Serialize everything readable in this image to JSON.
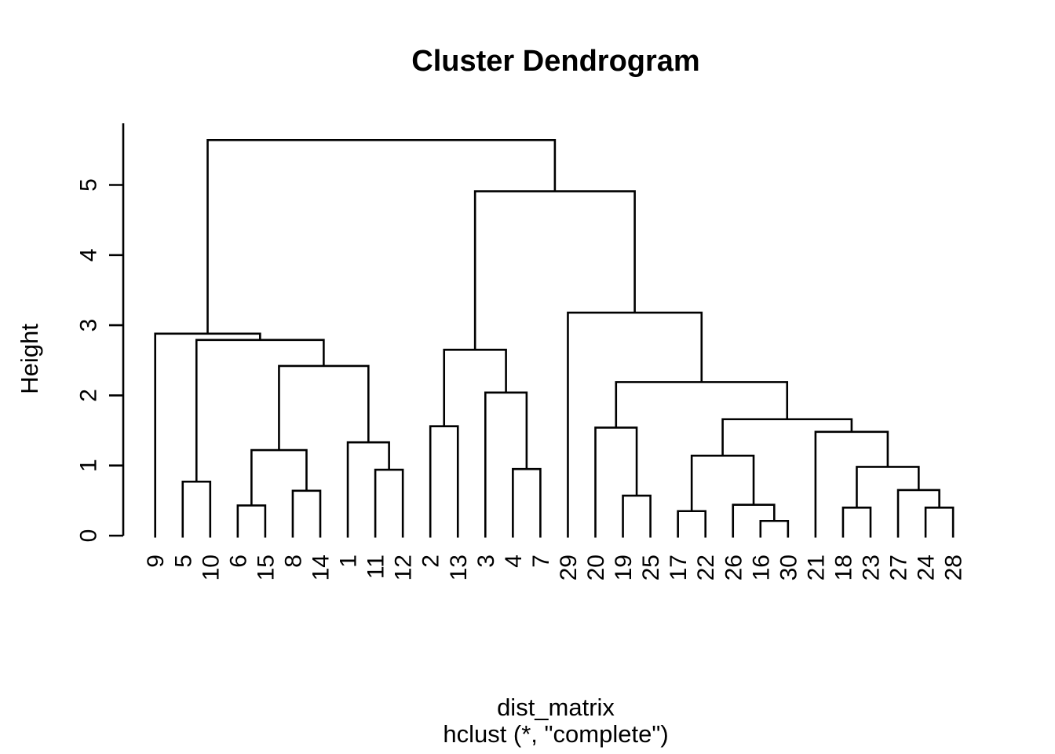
{
  "title": "Cluster Dendrogram",
  "y_axis": {
    "label": "Height",
    "ticks": [
      0,
      1,
      2,
      3,
      4,
      5
    ]
  },
  "x_axis": {
    "label": "dist_matrix",
    "sub_label": "hclust (*, \"complete\")"
  },
  "colors": {
    "line": "#000000",
    "text": "#000000",
    "background": "#ffffff"
  },
  "chart_data": {
    "type": "dendrogram",
    "title": "Cluster Dendrogram",
    "ylabel": "Height",
    "xlabel": "dist_matrix",
    "sub": "hclust (*, \"complete\")",
    "ylim": [
      0,
      5.64
    ],
    "y_ticks": [
      0,
      1,
      2,
      3,
      4,
      5
    ],
    "max_height": 5.64,
    "leaf_order": [
      "9",
      "5",
      "10",
      "6",
      "15",
      "8",
      "14",
      "1",
      "11",
      "12",
      "2",
      "13",
      "3",
      "4",
      "7",
      "29",
      "20",
      "19",
      "25",
      "17",
      "22",
      "26",
      "16",
      "30",
      "21",
      "18",
      "23",
      "27",
      "24",
      "28"
    ],
    "tree": {
      "h": 5.64,
      "c": [
        {
          "h": 2.88,
          "c": [
            "9",
            {
              "h": 2.79,
              "c": [
                {
                  "h": 0.77,
                  "c": [
                    "5",
                    "10"
                  ]
                },
                {
                  "h": 2.42,
                  "c": [
                    {
                      "h": 1.22,
                      "c": [
                        {
                          "h": 0.43,
                          "c": [
                            "6",
                            "15"
                          ]
                        },
                        {
                          "h": 0.64,
                          "c": [
                            "8",
                            "14"
                          ]
                        }
                      ]
                    },
                    {
                      "h": 1.33,
                      "c": [
                        "1",
                        {
                          "h": 0.94,
                          "c": [
                            "11",
                            "12"
                          ]
                        }
                      ]
                    }
                  ]
                }
              ]
            }
          ]
        },
        {
          "h": 4.91,
          "c": [
            {
              "h": 2.65,
              "c": [
                {
                  "h": 1.56,
                  "c": [
                    "2",
                    "13"
                  ]
                },
                {
                  "h": 2.04,
                  "c": [
                    "3",
                    {
                      "h": 0.95,
                      "c": [
                        "4",
                        "7"
                      ]
                    }
                  ]
                }
              ]
            },
            {
              "h": 3.18,
              "c": [
                "29",
                {
                  "h": 2.19,
                  "c": [
                    {
                      "h": 1.54,
                      "c": [
                        "20",
                        {
                          "h": 0.57,
                          "c": [
                            "19",
                            "25"
                          ]
                        }
                      ]
                    },
                    {
                      "h": 1.66,
                      "c": [
                        {
                          "h": 1.14,
                          "c": [
                            {
                              "h": 0.35,
                              "c": [
                                "17",
                                "22"
                              ]
                            },
                            {
                              "h": 0.44,
                              "c": [
                                "26",
                                {
                                  "h": 0.21,
                                  "c": [
                                    "16",
                                    "30"
                                  ]
                                }
                              ]
                            }
                          ]
                        },
                        {
                          "h": 1.48,
                          "c": [
                            "21",
                            {
                              "h": 0.98,
                              "c": [
                                {
                                  "h": 0.4,
                                  "c": [
                                    "18",
                                    "23"
                                  ]
                                },
                                {
                                  "h": 0.65,
                                  "c": [
                                    "27",
                                    {
                                      "h": 0.4,
                                      "c": [
                                        "24",
                                        "28"
                                      ]
                                    }
                                  ]
                                }
                              ]
                            }
                          ]
                        }
                      ]
                    }
                  ]
                }
              ]
            }
          ]
        }
      ]
    }
  }
}
